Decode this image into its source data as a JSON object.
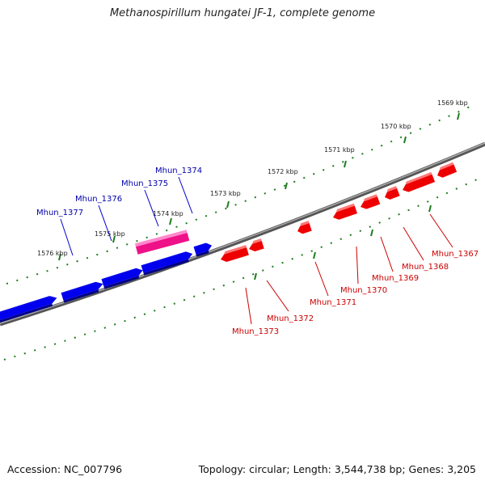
{
  "title": "Methanospirillum hungatei JF-1, complete genome",
  "footer": {
    "accession": "Accession: NC_007796",
    "summary": "Topology: circular; Length: 3,544,738 bp; Genes: 3,205"
  },
  "colors": {
    "forward_gene": "#0000ee",
    "reverse_gene": "#ee0000",
    "highlight_gene": "#ee1188",
    "backbone": "#777777",
    "ticks": "#1e7d1e"
  },
  "scale_labels": [
    "1569 kbp",
    "1570 kbp",
    "1571 kbp",
    "1572 kbp",
    "1573 kbp",
    "1574 kbp",
    "1575 kbp",
    "1576 kbp"
  ],
  "forward_genes": [
    "Mhun_1377",
    "Mhun_1376",
    "Mhun_1375",
    "Mhun_1374"
  ],
  "reverse_genes": [
    "Mhun_1373",
    "Mhun_1372",
    "Mhun_1371",
    "Mhun_1370",
    "Mhun_1369",
    "Mhun_1368",
    "Mhun_1367"
  ]
}
